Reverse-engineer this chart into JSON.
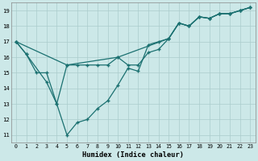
{
  "xlabel": "Humidex (Indice chaleur)",
  "xlim": [
    -0.5,
    23.5
  ],
  "ylim": [
    10.5,
    19.5
  ],
  "xticks": [
    0,
    1,
    2,
    3,
    4,
    5,
    6,
    7,
    8,
    9,
    10,
    11,
    12,
    13,
    14,
    15,
    16,
    17,
    18,
    19,
    20,
    21,
    22,
    23
  ],
  "yticks": [
    11,
    12,
    13,
    14,
    15,
    16,
    17,
    18,
    19
  ],
  "bg_color": "#cce8e8",
  "grid_color": "#aacccc",
  "line_color": "#1a7070",
  "line1_x": [
    0,
    5,
    10,
    15,
    16,
    17,
    18,
    19,
    20,
    21,
    22,
    23
  ],
  "line1_y": [
    17,
    15.5,
    16.0,
    17.2,
    18.2,
    18.0,
    18.6,
    18.5,
    18.8,
    18.8,
    19.0,
    19.2
  ],
  "line2_x": [
    0,
    1,
    2,
    3,
    4,
    5,
    6,
    7,
    8,
    9,
    10,
    11,
    12,
    13,
    14,
    15,
    16,
    17,
    18,
    19,
    20,
    21,
    22,
    23
  ],
  "line2_y": [
    17,
    16.2,
    15.0,
    15.0,
    13.0,
    15.5,
    15.5,
    15.5,
    15.5,
    15.5,
    16.0,
    15.5,
    15.5,
    16.3,
    16.5,
    17.2,
    18.2,
    18.0,
    18.6,
    18.5,
    18.8,
    18.8,
    19.0,
    19.2
  ],
  "line3_x": [
    0,
    1,
    3,
    4,
    5,
    6,
    7,
    8,
    9,
    10,
    11,
    12,
    13,
    14,
    15,
    16,
    17,
    18,
    19,
    20,
    21,
    22,
    23
  ],
  "line3_y": [
    17,
    16.2,
    14.4,
    13.0,
    11.0,
    11.8,
    12.0,
    12.7,
    13.2,
    14.2,
    15.3,
    15.1,
    16.8,
    17.0,
    17.2,
    18.2,
    18.0,
    18.6,
    18.5,
    18.8,
    18.8,
    19.0,
    19.2
  ]
}
